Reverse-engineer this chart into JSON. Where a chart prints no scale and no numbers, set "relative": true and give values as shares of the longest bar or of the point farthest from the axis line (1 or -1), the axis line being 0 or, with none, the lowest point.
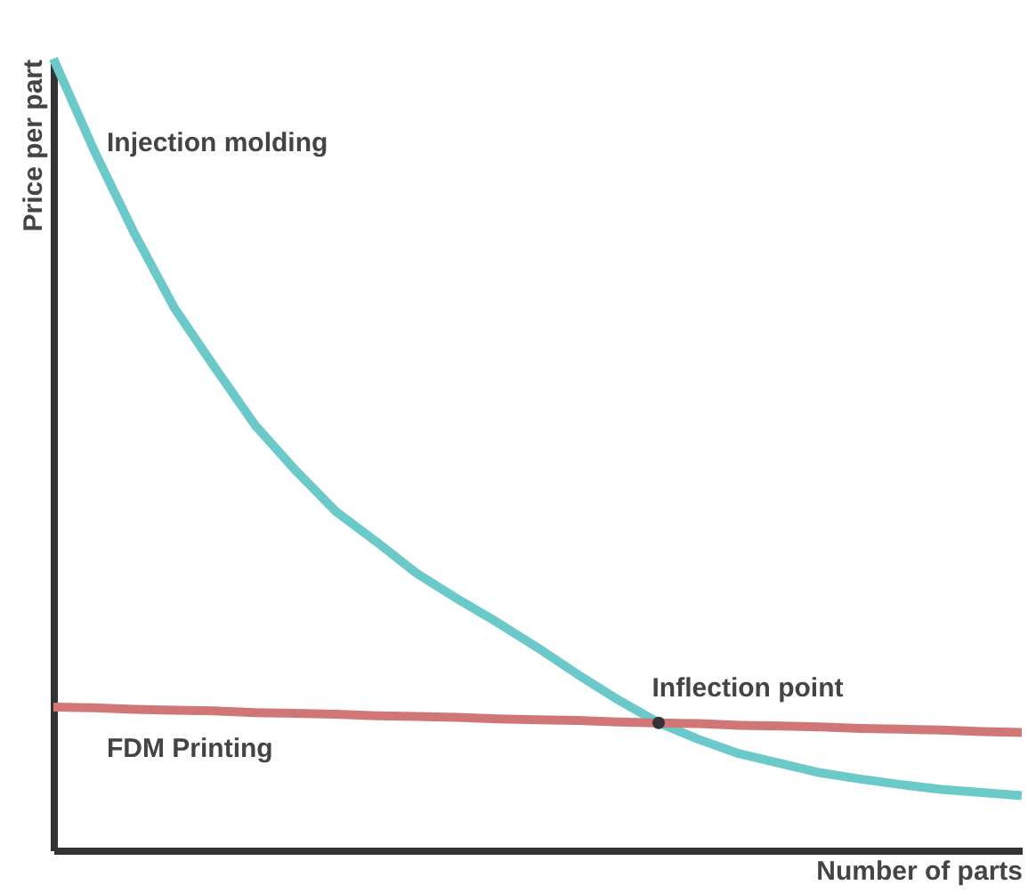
{
  "chart_data": {
    "type": "line",
    "relative": true,
    "xlabel": "Number of parts",
    "ylabel": "Price per part",
    "legend": false,
    "grid": false,
    "tick_labels": false,
    "marker": "none",
    "categories": [
      null,
      null,
      null,
      null,
      null,
      null,
      null,
      null,
      null,
      null,
      null,
      null,
      null,
      null,
      null,
      null,
      null,
      null,
      null,
      null,
      null,
      null,
      null,
      null,
      null
    ],
    "series": [
      {
        "name": "Injection molding",
        "color": "#6cc9c9",
        "values": [
          1.0,
          0.885,
          0.78,
          0.685,
          0.61,
          0.537,
          0.48,
          0.428,
          0.39,
          0.35,
          0.318,
          0.288,
          0.256,
          0.222,
          0.19,
          0.161,
          0.14,
          0.122,
          0.11,
          0.098,
          0.09,
          0.083,
          0.077,
          0.073,
          0.069
        ]
      },
      {
        "name": "FDM Printing",
        "color": "#d17677",
        "values": [
          0.181,
          0.18,
          0.178,
          0.177,
          0.176,
          0.174,
          0.173,
          0.172,
          0.17,
          0.169,
          0.168,
          0.166,
          0.165,
          0.164,
          0.162,
          0.161,
          0.16,
          0.158,
          0.157,
          0.156,
          0.154,
          0.153,
          0.152,
          0.15,
          0.149
        ]
      }
    ],
    "annotations": [
      {
        "text": "Inflection point",
        "y": 0.161
      }
    ]
  }
}
